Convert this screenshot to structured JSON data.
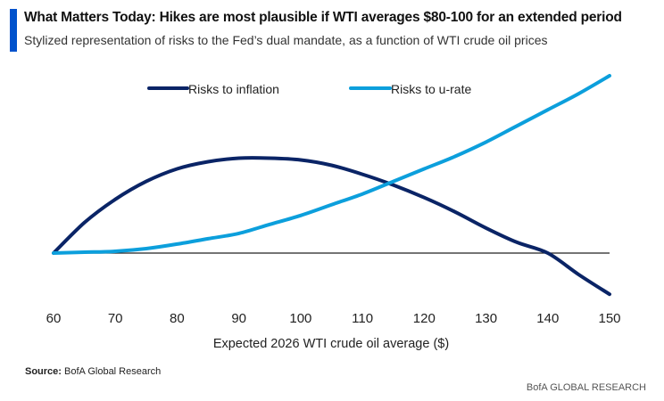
{
  "header": {
    "title": "What Matters Today: Hikes are most plausible if WTI averages $80-100 for an extended period",
    "subtitle": "Stylized representation of risks to the Fed’s dual mandate, as a function of WTI crude oil prices"
  },
  "footer": {
    "source_label": "Source:",
    "source_text": "BofA Global Research",
    "brand": "BofA GLOBAL RESEARCH"
  },
  "colors": {
    "accent": "#0052cc",
    "inflation": "#0a2466",
    "urate": "#0c9fdc",
    "zero_line": "#222222"
  },
  "chart_data": {
    "type": "line",
    "xlabel": "Expected 2026 WTI crude oil average ($)",
    "ylabel": "",
    "x": [
      60,
      70,
      80,
      90,
      100,
      110,
      120,
      130,
      140,
      150
    ],
    "xlim": [
      60,
      150
    ],
    "ylim": [
      -0.25,
      1.0
    ],
    "grid": false,
    "legend_position": "top",
    "zero_line": true,
    "series": [
      {
        "name": "Risks to inflation",
        "color": "#0a2466",
        "points": [
          [
            60,
            0
          ],
          [
            65,
            0.17
          ],
          [
            70,
            0.3
          ],
          [
            75,
            0.4
          ],
          [
            80,
            0.47
          ],
          [
            85,
            0.51
          ],
          [
            90,
            0.53
          ],
          [
            95,
            0.53
          ],
          [
            100,
            0.52
          ],
          [
            105,
            0.49
          ],
          [
            110,
            0.44
          ],
          [
            115,
            0.38
          ],
          [
            120,
            0.31
          ],
          [
            125,
            0.23
          ],
          [
            130,
            0.14
          ],
          [
            135,
            0.06
          ],
          [
            140,
            0.0
          ],
          [
            145,
            -0.12
          ],
          [
            150,
            -0.23
          ]
        ]
      },
      {
        "name": "Risks to u-rate",
        "color": "#0c9fdc",
        "points": [
          [
            60,
            0
          ],
          [
            65,
            0.005
          ],
          [
            70,
            0.01
          ],
          [
            75,
            0.025
          ],
          [
            80,
            0.05
          ],
          [
            85,
            0.08
          ],
          [
            90,
            0.11
          ],
          [
            95,
            0.16
          ],
          [
            100,
            0.21
          ],
          [
            105,
            0.27
          ],
          [
            110,
            0.33
          ],
          [
            115,
            0.4
          ],
          [
            120,
            0.47
          ],
          [
            125,
            0.54
          ],
          [
            130,
            0.62
          ],
          [
            135,
            0.71
          ],
          [
            140,
            0.8
          ],
          [
            145,
            0.89
          ],
          [
            150,
            0.99
          ]
        ]
      }
    ]
  }
}
